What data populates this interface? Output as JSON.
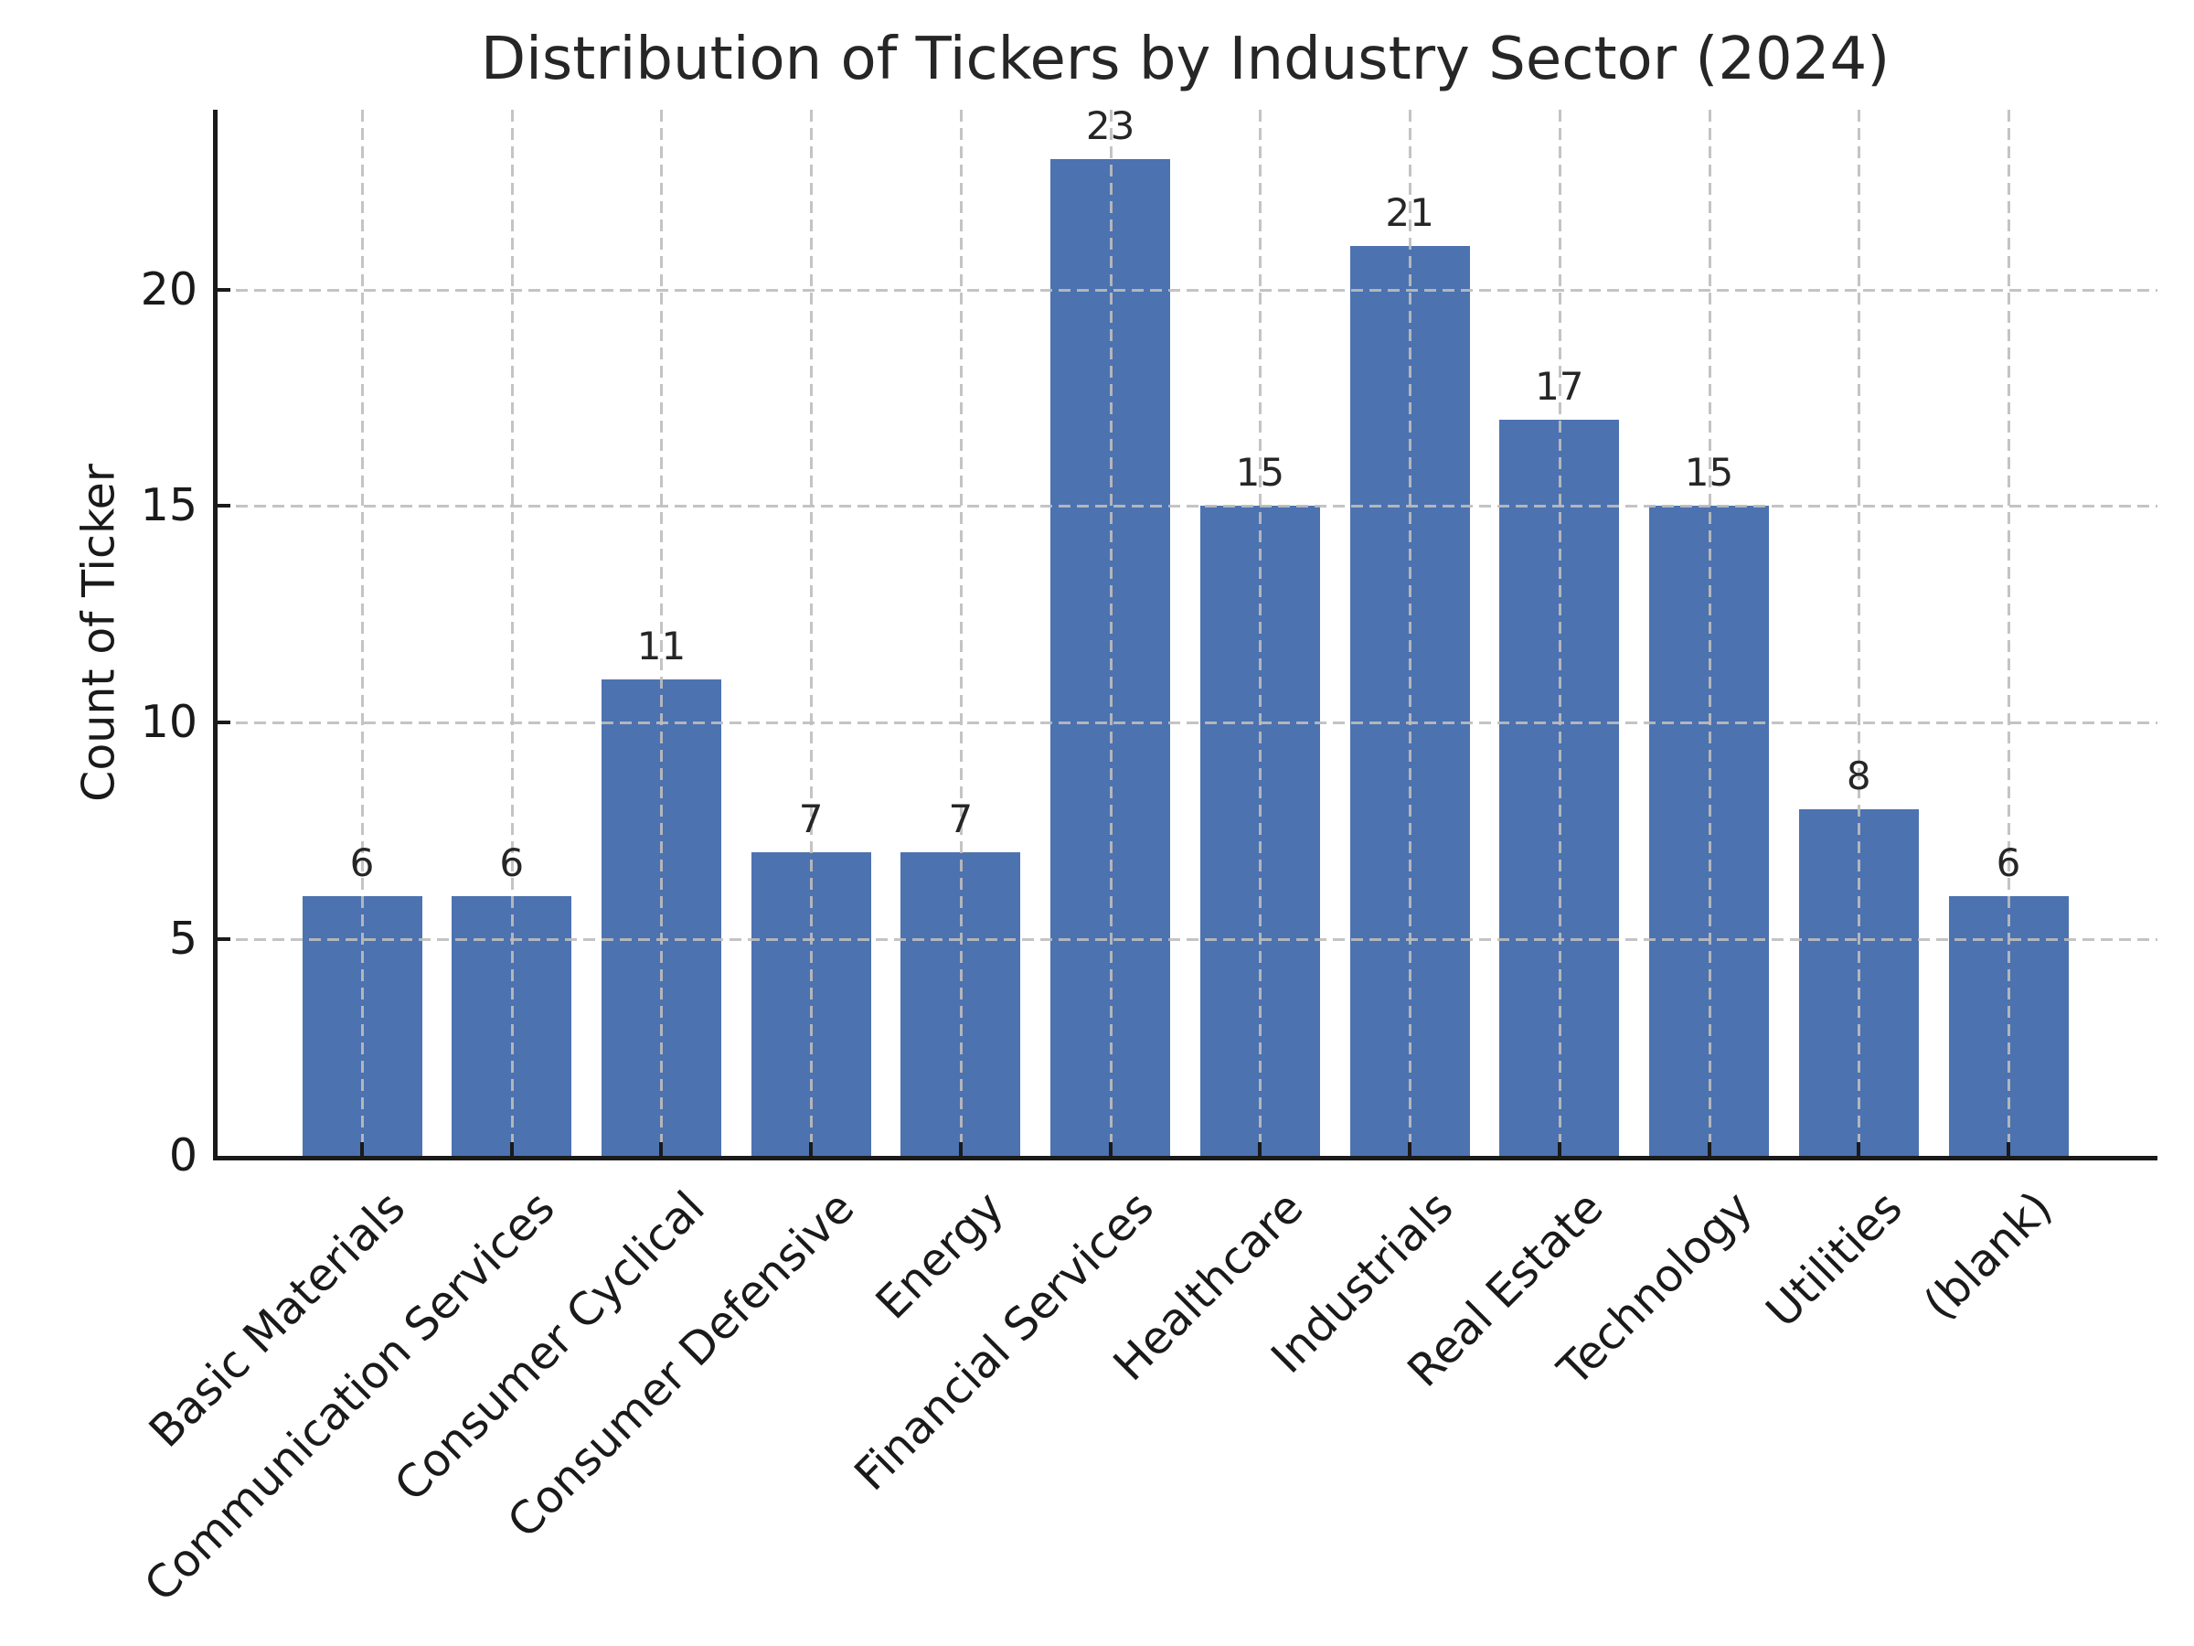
{
  "chart_data": {
    "type": "bar",
    "title": "Distribution of Tickers by Industry Sector (2024)",
    "xlabel": "",
    "ylabel": "Count of Ticker",
    "categories": [
      "Basic Materials",
      "Communication Services",
      "Consumer Cyclical",
      "Consumer Defensive",
      "Energy",
      "Financial Services",
      "Healthcare",
      "Industrials",
      "Real Estate",
      "Technology",
      "Utilities",
      "(blank)"
    ],
    "values": [
      6,
      6,
      11,
      7,
      7,
      23,
      15,
      21,
      17,
      15,
      8,
      6
    ],
    "value_labels": [
      "6",
      "6",
      "11",
      "7",
      "7",
      "23",
      "15",
      "21",
      "17",
      "15",
      "8",
      "6"
    ],
    "yticks": [
      0,
      5,
      10,
      15,
      20
    ],
    "ytick_labels": [
      "0",
      "5",
      "10",
      "15",
      "20"
    ],
    "ylim": [
      0,
      24.15
    ],
    "grid": {
      "visible": true,
      "style": "dashed",
      "axes": "both",
      "drawn_above_bars": true
    },
    "legend": "none",
    "xtick_label_rotation_deg": 45,
    "colors": {
      "bar": "#4C72B0",
      "grid": "#bdbdbd",
      "axis": "#1a1a1a",
      "text": "#262626",
      "background": "#ffffff"
    }
  }
}
